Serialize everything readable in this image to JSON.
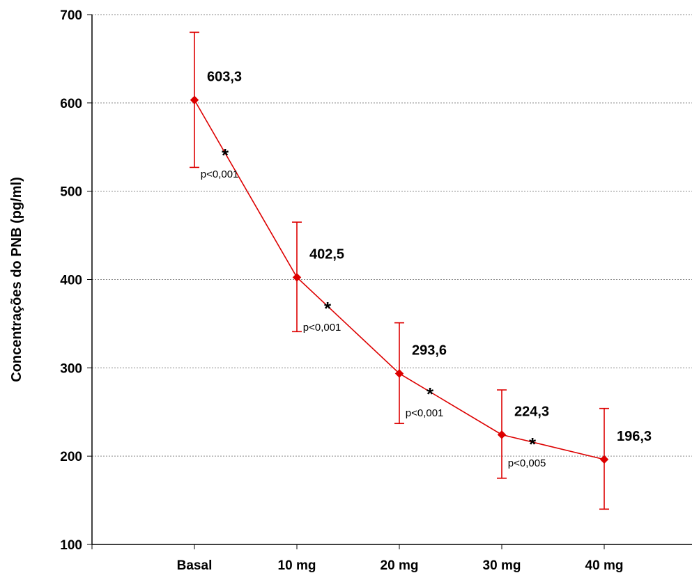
{
  "chart_data": {
    "type": "line",
    "title": "",
    "xlabel": "",
    "ylabel": "Concentrações do PNB (pg/ml)",
    "ylim": [
      100,
      700
    ],
    "yticks": [
      100,
      200,
      300,
      400,
      500,
      600,
      700
    ],
    "grid": "horizontal dotted",
    "categories": [
      "Basal",
      "10 mg",
      "20 mg",
      "30 mg",
      "40 mg"
    ],
    "series": [
      {
        "color": "#dd0000",
        "values": [
          603.3,
          402.5,
          293.6,
          224.3,
          196.3
        ],
        "error_low": [
          527,
          341,
          237,
          175,
          140
        ],
        "error_high": [
          680,
          465,
          351,
          275,
          254
        ]
      }
    ],
    "data_labels": [
      "603,3",
      "402,5",
      "293,6",
      "224,3",
      "196,3"
    ],
    "annotations": [
      {
        "star": "*",
        "text": "p<0,001"
      },
      {
        "star": "*",
        "text": "p<0,001"
      },
      {
        "star": "*",
        "text": "p<0,001"
      },
      {
        "star": "*",
        "text": "p<0,005"
      }
    ]
  }
}
